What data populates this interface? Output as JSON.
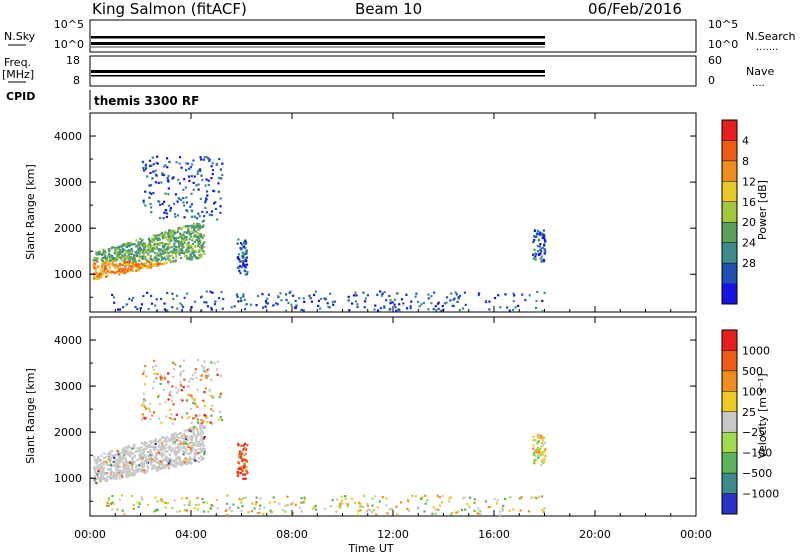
{
  "header": {
    "station": "King Salmon (fitACF)",
    "beam": "Beam 10",
    "date": "06/Feb/2016"
  },
  "nsky_panel": {
    "left_label": "N.Sky",
    "right_label": "N.Search",
    "left_ticks": [
      "10^5",
      "10^0"
    ],
    "right_ticks": [
      "10^5",
      "10^0"
    ]
  },
  "freq_panel": {
    "left_label_top": "Freq.",
    "left_label_unit": "[MHz]",
    "right_label": "Nave",
    "left_ticks": [
      "18",
      "8"
    ],
    "right_ticks": [
      "60",
      "0"
    ]
  },
  "cpid": {
    "label": "CPID",
    "program": "themis 3300 RF"
  },
  "x_axis": {
    "label": "Time UT",
    "ticks": [
      "00:00",
      "04:00",
      "08:00",
      "12:00",
      "16:00",
      "20:00",
      "00:00"
    ],
    "range_hours": [
      0,
      24
    ]
  },
  "power_panel": {
    "ylabel": "Slant Range [km]",
    "yticks": [
      "1000",
      "2000",
      "3000",
      "4000"
    ],
    "yrange_km": [
      180,
      4500
    ],
    "colorbar_label": "Power [dB]",
    "colorbar_ticks": [
      "4",
      "8",
      "12",
      "16",
      "20",
      "24",
      "28"
    ],
    "colors": [
      "#1414e6",
      "#1e50b4",
      "#3c8c8c",
      "#5aa05a",
      "#a0c83c",
      "#e6c828",
      "#f08c1e",
      "#f05a14",
      "#e61e1e"
    ]
  },
  "velocity_panel": {
    "ylabel": "Slant Range [km]",
    "yticks": [
      "1000",
      "2000",
      "3000",
      "4000"
    ],
    "yrange_km": [
      180,
      4500
    ],
    "colorbar_label": "Velocity [m s⁻¹]",
    "colorbar_ticks": [
      "1000",
      "500",
      "100",
      "25",
      "−25",
      "−100",
      "−500",
      "−1000"
    ],
    "colors": [
      "#2832c8",
      "#3c8c8c",
      "#5ab45a",
      "#a0dc50",
      "#c8c8c8",
      "#f0c828",
      "#f08c1e",
      "#f05a14",
      "#e61e1e"
    ]
  },
  "chart_data": {
    "type": "heatmap",
    "title": "King Salmon (fitACF)",
    "xlabel": "Time UT",
    "ylabel": "Slant Range [km]",
    "x_range_hours": [
      0,
      24
    ],
    "y_range_km": [
      180,
      4500
    ],
    "scatter_regions": [
      {
        "name": "main echo band",
        "t_start": 0.1,
        "t_end": 4.5,
        "range_km_approx": [
          900,
          2200
        ]
      },
      {
        "name": "high-range patches",
        "t_start": 2.0,
        "t_end": 5.2,
        "range_km_approx": [
          2200,
          3600
        ]
      },
      {
        "name": "isolated patch",
        "t_start": 5.8,
        "t_end": 6.2,
        "range_km_approx": [
          1000,
          1800
        ]
      },
      {
        "name": "near-range scatter",
        "t_start": 0.5,
        "t_end": 18.0,
        "range_km_approx": [
          200,
          650
        ]
      },
      {
        "name": "late patch",
        "t_start": 17.5,
        "t_end": 18.0,
        "range_km_approx": [
          1300,
          2000
        ]
      }
    ],
    "cpid_program": "themis 3300 RF"
  }
}
